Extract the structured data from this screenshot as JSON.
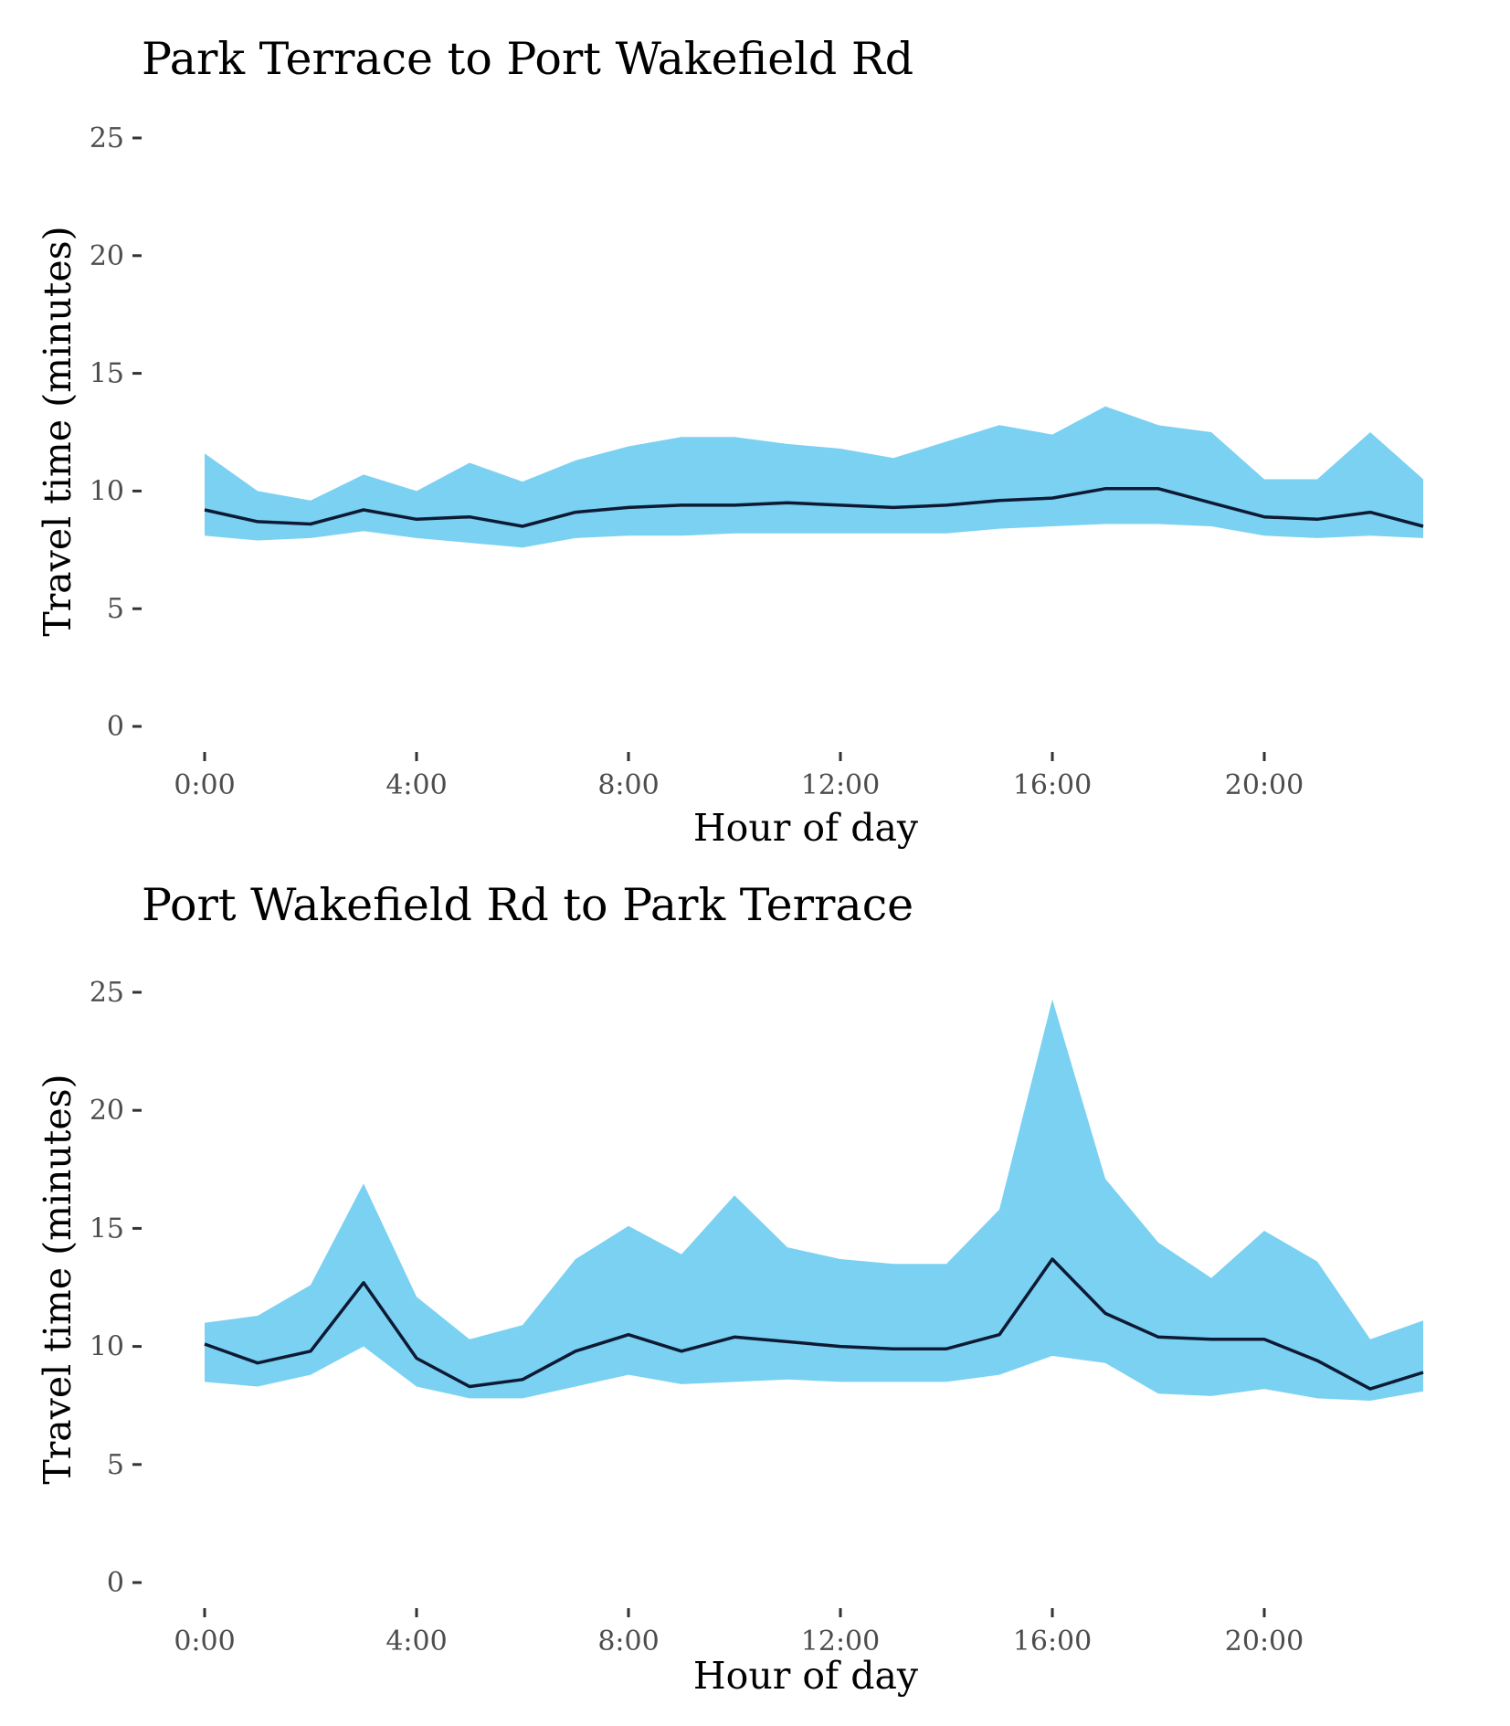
{
  "chart_data": [
    {
      "type": "area",
      "title": "Park Terrace to Port Wakefield Rd",
      "xlabel": "Hour of day",
      "ylabel": "Travel time (minutes)",
      "x": [
        0,
        1,
        2,
        3,
        4,
        5,
        6,
        7,
        8,
        9,
        10,
        11,
        12,
        13,
        14,
        15,
        16,
        17,
        18,
        19,
        20,
        21,
        22,
        23
      ],
      "xticks": [
        0,
        4,
        8,
        12,
        16,
        20
      ],
      "xtick_labels": [
        "0:00",
        "4:00",
        "8:00",
        "12:00",
        "16:00",
        "20:00"
      ],
      "yticks": [
        0,
        5,
        10,
        15,
        20,
        25
      ],
      "ylim": [
        0,
        25
      ],
      "xlim": [
        0,
        23
      ],
      "grid": false,
      "band_color": "#7AD1F2",
      "line_color": "#0E1A33",
      "series": [
        {
          "role": "band_upper",
          "values": [
            11.6,
            10.0,
            9.6,
            10.7,
            10.0,
            11.2,
            10.4,
            11.3,
            11.9,
            12.3,
            12.3,
            12.0,
            11.8,
            11.4,
            12.1,
            12.8,
            12.4,
            13.6,
            12.8,
            12.5,
            10.5,
            10.5,
            12.5,
            10.5
          ]
        },
        {
          "role": "band_lower",
          "values": [
            8.1,
            7.9,
            8.0,
            8.3,
            8.0,
            7.8,
            7.6,
            8.0,
            8.1,
            8.1,
            8.2,
            8.2,
            8.2,
            8.2,
            8.2,
            8.4,
            8.5,
            8.6,
            8.6,
            8.5,
            8.1,
            8.0,
            8.1,
            8.0
          ]
        },
        {
          "role": "median",
          "values": [
            9.2,
            8.7,
            8.6,
            9.2,
            8.8,
            8.9,
            8.5,
            9.1,
            9.3,
            9.4,
            9.4,
            9.5,
            9.4,
            9.3,
            9.4,
            9.6,
            9.7,
            10.1,
            10.1,
            9.5,
            8.9,
            8.8,
            9.1,
            8.5
          ]
        }
      ]
    },
    {
      "type": "area",
      "title": "Port Wakefield Rd to Park Terrace",
      "xlabel": "Hour of day",
      "ylabel": "Travel time (minutes)",
      "x": [
        0,
        1,
        2,
        3,
        4,
        5,
        6,
        7,
        8,
        9,
        10,
        11,
        12,
        13,
        14,
        15,
        16,
        17,
        18,
        19,
        20,
        21,
        22,
        23
      ],
      "xticks": [
        0,
        4,
        8,
        12,
        16,
        20
      ],
      "xtick_labels": [
        "0:00",
        "4:00",
        "8:00",
        "12:00",
        "16:00",
        "20:00"
      ],
      "yticks": [
        0,
        5,
        10,
        15,
        20,
        25
      ],
      "ylim": [
        0,
        25
      ],
      "xlim": [
        0,
        23
      ],
      "grid": false,
      "band_color": "#7AD1F2",
      "line_color": "#0E1A33",
      "series": [
        {
          "role": "band_upper",
          "values": [
            11.0,
            11.3,
            12.6,
            16.9,
            12.1,
            10.3,
            10.9,
            13.7,
            15.1,
            13.9,
            16.4,
            14.2,
            13.7,
            13.5,
            13.5,
            15.8,
            24.7,
            17.1,
            14.4,
            12.9,
            14.9,
            13.6,
            10.3,
            11.1
          ]
        },
        {
          "role": "band_lower",
          "values": [
            8.5,
            8.3,
            8.8,
            10.0,
            8.3,
            7.8,
            7.8,
            8.3,
            8.8,
            8.4,
            8.5,
            8.6,
            8.5,
            8.5,
            8.5,
            8.8,
            9.6,
            9.3,
            8.0,
            7.9,
            8.2,
            7.8,
            7.7,
            8.1
          ]
        },
        {
          "role": "median",
          "values": [
            10.1,
            9.3,
            9.8,
            12.7,
            9.5,
            8.3,
            8.6,
            9.8,
            10.5,
            9.8,
            10.4,
            10.2,
            10.0,
            9.9,
            9.9,
            10.5,
            13.7,
            11.4,
            10.4,
            10.3,
            10.3,
            9.4,
            8.2,
            8.9
          ]
        }
      ]
    }
  ]
}
